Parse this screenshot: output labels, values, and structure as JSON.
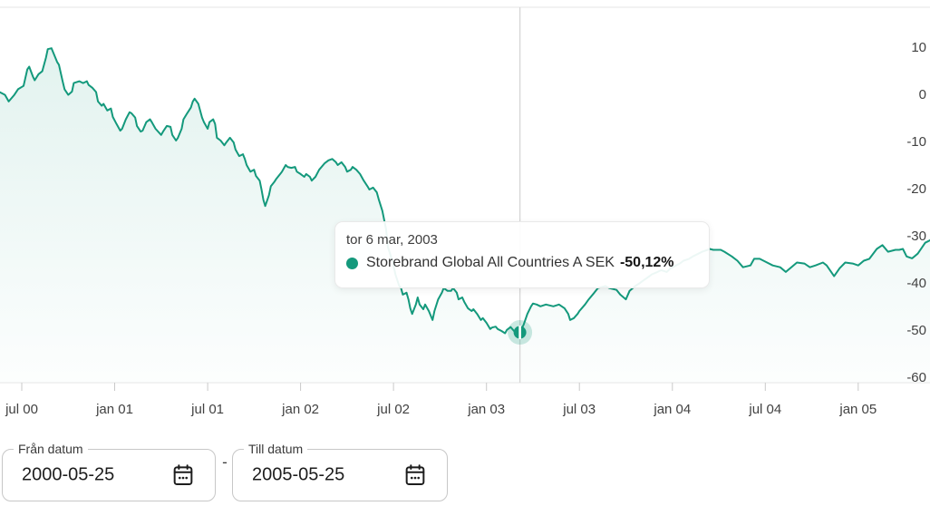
{
  "colors": {
    "accent": "#14997c",
    "accent_halo": "rgba(20,153,124,0.22)",
    "area_top": "rgba(20,153,124,0.12)",
    "area_bottom": "rgba(20,153,124,0.01)",
    "axis_line": "#e6e6e6",
    "tick": "#c9c9c9",
    "crosshair": "#d6d6d6",
    "axis_text": "#424242",
    "text_dark": "#1d1d1d",
    "field_border": "#c7c7c7"
  },
  "tooltip": {
    "date": "tor 6 mar, 2003",
    "series_name": "Storebrand Global All Countries A SEK",
    "value": "-50,12%"
  },
  "controls": {
    "from": {
      "label": "Från datum",
      "value": "2000-05-25"
    },
    "separator": "-",
    "to": {
      "label": "Till datum",
      "value": "2005-05-25"
    }
  },
  "chart_data": {
    "type": "area",
    "title": "",
    "xlabel": "",
    "ylabel": "",
    "unit": "%",
    "grid": "top and bottom border lines only, no inner gridlines",
    "legend_position": "none (single series, named in tooltip)",
    "xlim": [
      2000.383,
      2005.386
    ],
    "ylim": [
      -60.8,
      18.9
    ],
    "x_ticks": [
      {
        "label": "jul 00",
        "year": 2000.5
      },
      {
        "label": "jan 01",
        "year": 2001.0
      },
      {
        "label": "jul 01",
        "year": 2001.5
      },
      {
        "label": "jan 02",
        "year": 2002.0
      },
      {
        "label": "jul 02",
        "year": 2002.5
      },
      {
        "label": "jan 03",
        "year": 2003.0
      },
      {
        "label": "jul 03",
        "year": 2003.5
      },
      {
        "label": "jan 04",
        "year": 2004.0
      },
      {
        "label": "jul 04",
        "year": 2004.5
      },
      {
        "label": "jan 05",
        "year": 2005.0
      }
    ],
    "y_ticks": [
      {
        "label": "10",
        "value": 10
      },
      {
        "label": "0",
        "value": 0
      },
      {
        "label": "-10",
        "value": -10
      },
      {
        "label": "-20",
        "value": -20
      },
      {
        "label": "-30",
        "value": -30
      },
      {
        "label": "-40",
        "value": -40
      },
      {
        "label": "-50",
        "value": -50
      },
      {
        "label": "-60",
        "value": -60
      }
    ],
    "highlight": {
      "date_label": "tor 6 mar, 2003",
      "year": 2003.18,
      "value": -50.12
    },
    "series": [
      {
        "name": "Storebrand Global All Countries A SEK",
        "points": [
          [
            2000.38,
            0.9
          ],
          [
            2000.41,
            0.3
          ],
          [
            2000.43,
            -1.1
          ],
          [
            2000.46,
            0.3
          ],
          [
            2000.48,
            1.5
          ],
          [
            2000.51,
            2.2
          ],
          [
            2000.53,
            5.7
          ],
          [
            2000.54,
            6.3
          ],
          [
            2000.56,
            4.2
          ],
          [
            2000.57,
            3.4
          ],
          [
            2000.59,
            4.7
          ],
          [
            2000.61,
            5.3
          ],
          [
            2000.63,
            8.2
          ],
          [
            2000.64,
            10.0
          ],
          [
            2000.66,
            10.2
          ],
          [
            2000.69,
            7.3
          ],
          [
            2000.7,
            6.7
          ],
          [
            2000.72,
            3.2
          ],
          [
            2000.73,
            1.5
          ],
          [
            2000.75,
            0.3
          ],
          [
            2000.77,
            1.0
          ],
          [
            2000.78,
            2.8
          ],
          [
            2000.81,
            3.2
          ],
          [
            2000.83,
            2.8
          ],
          [
            2000.85,
            3.2
          ],
          [
            2000.86,
            2.4
          ],
          [
            2000.88,
            1.8
          ],
          [
            2000.9,
            0.9
          ],
          [
            2000.91,
            -1.1
          ],
          [
            2000.93,
            -2.0
          ],
          [
            2000.94,
            -1.6
          ],
          [
            2000.96,
            -3.0
          ],
          [
            2000.98,
            -2.6
          ],
          [
            2000.99,
            -4.4
          ],
          [
            2001.01,
            -5.9
          ],
          [
            2001.03,
            -7.3
          ],
          [
            2001.04,
            -6.9
          ],
          [
            2001.06,
            -4.9
          ],
          [
            2001.08,
            -3.4
          ],
          [
            2001.09,
            -3.6
          ],
          [
            2001.11,
            -4.5
          ],
          [
            2001.12,
            -6.3
          ],
          [
            2001.14,
            -7.5
          ],
          [
            2001.15,
            -7.3
          ],
          [
            2001.17,
            -5.5
          ],
          [
            2001.19,
            -4.9
          ],
          [
            2001.2,
            -5.5
          ],
          [
            2001.22,
            -6.9
          ],
          [
            2001.25,
            -8.2
          ],
          [
            2001.26,
            -7.5
          ],
          [
            2001.28,
            -6.3
          ],
          [
            2001.3,
            -6.5
          ],
          [
            2001.31,
            -8.2
          ],
          [
            2001.33,
            -9.4
          ],
          [
            2001.34,
            -8.8
          ],
          [
            2001.36,
            -6.9
          ],
          [
            2001.37,
            -4.9
          ],
          [
            2001.39,
            -3.6
          ],
          [
            2001.41,
            -2.4
          ],
          [
            2001.42,
            -1.1
          ],
          [
            2001.43,
            -0.5
          ],
          [
            2001.45,
            -1.6
          ],
          [
            2001.47,
            -4.5
          ],
          [
            2001.48,
            -5.5
          ],
          [
            2001.5,
            -6.9
          ],
          [
            2001.51,
            -5.5
          ],
          [
            2001.53,
            -4.9
          ],
          [
            2001.54,
            -5.9
          ],
          [
            2001.55,
            -8.8
          ],
          [
            2001.57,
            -9.4
          ],
          [
            2001.59,
            -10.4
          ],
          [
            2001.6,
            -9.8
          ],
          [
            2001.62,
            -8.8
          ],
          [
            2001.64,
            -9.8
          ],
          [
            2001.65,
            -11.3
          ],
          [
            2001.67,
            -12.7
          ],
          [
            2001.69,
            -12.3
          ],
          [
            2001.7,
            -13.3
          ],
          [
            2001.71,
            -14.6
          ],
          [
            2001.73,
            -16.0
          ],
          [
            2001.75,
            -15.6
          ],
          [
            2001.76,
            -16.9
          ],
          [
            2001.78,
            -17.9
          ],
          [
            2001.79,
            -19.8
          ],
          [
            2001.8,
            -22.0
          ],
          [
            2001.81,
            -23.3
          ],
          [
            2001.83,
            -21.0
          ],
          [
            2001.84,
            -19.1
          ],
          [
            2001.86,
            -18.1
          ],
          [
            2001.87,
            -17.5
          ],
          [
            2001.89,
            -16.5
          ],
          [
            2001.9,
            -16.0
          ],
          [
            2001.92,
            -14.6
          ],
          [
            2001.93,
            -15.0
          ],
          [
            2001.95,
            -15.2
          ],
          [
            2001.97,
            -15.0
          ],
          [
            2001.98,
            -16.0
          ],
          [
            2002.0,
            -16.5
          ],
          [
            2002.02,
            -17.1
          ],
          [
            2002.03,
            -16.5
          ],
          [
            2002.05,
            -17.1
          ],
          [
            2002.06,
            -17.9
          ],
          [
            2002.08,
            -17.1
          ],
          [
            2002.1,
            -15.6
          ],
          [
            2002.13,
            -14.2
          ],
          [
            2002.15,
            -13.6
          ],
          [
            2002.17,
            -13.3
          ],
          [
            2002.19,
            -14.0
          ],
          [
            2002.2,
            -14.6
          ],
          [
            2002.22,
            -14.0
          ],
          [
            2002.24,
            -15.0
          ],
          [
            2002.25,
            -16.0
          ],
          [
            2002.27,
            -15.6
          ],
          [
            2002.28,
            -15.0
          ],
          [
            2002.3,
            -15.6
          ],
          [
            2002.32,
            -16.5
          ],
          [
            2002.34,
            -17.9
          ],
          [
            2002.36,
            -19.1
          ],
          [
            2002.37,
            -19.8
          ],
          [
            2002.39,
            -19.4
          ],
          [
            2002.41,
            -20.4
          ],
          [
            2002.42,
            -21.8
          ],
          [
            2002.44,
            -24.3
          ],
          [
            2002.46,
            -28.2
          ],
          [
            2002.47,
            -32.0
          ],
          [
            2002.49,
            -34.5
          ],
          [
            2002.5,
            -35.9
          ],
          [
            2002.51,
            -37.8
          ],
          [
            2002.53,
            -40.2
          ],
          [
            2002.54,
            -40.7
          ],
          [
            2002.55,
            -42.1
          ],
          [
            2002.57,
            -41.7
          ],
          [
            2002.58,
            -43.1
          ],
          [
            2002.59,
            -45.0
          ],
          [
            2002.6,
            -46.2
          ],
          [
            2002.62,
            -44.2
          ],
          [
            2002.63,
            -42.7
          ],
          [
            2002.64,
            -44.2
          ],
          [
            2002.66,
            -45.2
          ],
          [
            2002.67,
            -44.2
          ],
          [
            2002.69,
            -45.6
          ],
          [
            2002.71,
            -47.5
          ],
          [
            2002.72,
            -45.6
          ],
          [
            2002.74,
            -43.1
          ],
          [
            2002.76,
            -41.7
          ],
          [
            2002.77,
            -40.7
          ],
          [
            2002.79,
            -41.3
          ],
          [
            2002.81,
            -41.3
          ],
          [
            2002.82,
            -40.7
          ],
          [
            2002.84,
            -41.7
          ],
          [
            2002.85,
            -43.1
          ],
          [
            2002.87,
            -42.7
          ],
          [
            2002.88,
            -43.6
          ],
          [
            2002.9,
            -45.0
          ],
          [
            2002.92,
            -45.6
          ],
          [
            2002.93,
            -45.2
          ],
          [
            2002.95,
            -46.2
          ],
          [
            2002.97,
            -47.5
          ],
          [
            2002.98,
            -47.1
          ],
          [
            2003.0,
            -48.1
          ],
          [
            2003.02,
            -49.4
          ],
          [
            2003.03,
            -49.1
          ],
          [
            2003.05,
            -48.9
          ],
          [
            2003.06,
            -49.4
          ],
          [
            2003.08,
            -49.8
          ],
          [
            2003.1,
            -50.3
          ],
          [
            2003.11,
            -49.6
          ],
          [
            2003.13,
            -49.0
          ],
          [
            2003.15,
            -49.9
          ],
          [
            2003.16,
            -50.0
          ],
          [
            2003.18,
            -50.12
          ],
          [
            2003.2,
            -48.5
          ],
          [
            2003.22,
            -46.2
          ],
          [
            2003.24,
            -44.6
          ],
          [
            2003.25,
            -44.0
          ],
          [
            2003.27,
            -44.2
          ],
          [
            2003.29,
            -44.6
          ],
          [
            2003.32,
            -44.2
          ],
          [
            2003.36,
            -44.6
          ],
          [
            2003.39,
            -44.2
          ],
          [
            2003.42,
            -45.0
          ],
          [
            2003.44,
            -46.2
          ],
          [
            2003.45,
            -47.5
          ],
          [
            2003.47,
            -47.1
          ],
          [
            2003.49,
            -46.2
          ],
          [
            2003.5,
            -45.6
          ],
          [
            2003.53,
            -44.2
          ],
          [
            2003.55,
            -43.1
          ],
          [
            2003.58,
            -41.7
          ],
          [
            2003.6,
            -40.7
          ],
          [
            2003.64,
            -40.3
          ],
          [
            2003.66,
            -40.7
          ],
          [
            2003.7,
            -41.1
          ],
          [
            2003.72,
            -42.1
          ],
          [
            2003.75,
            -43.1
          ],
          [
            2003.77,
            -41.3
          ],
          [
            2003.8,
            -40.3
          ],
          [
            2003.82,
            -39.8
          ],
          [
            2003.84,
            -39.2
          ],
          [
            2003.87,
            -38.4
          ],
          [
            2003.89,
            -37.8
          ],
          [
            2003.92,
            -37.3
          ],
          [
            2003.94,
            -36.9
          ],
          [
            2003.97,
            -37.3
          ],
          [
            2003.99,
            -36.5
          ],
          [
            2004.02,
            -35.9
          ],
          [
            2004.04,
            -35.5
          ],
          [
            2004.06,
            -34.9
          ],
          [
            2004.09,
            -34.5
          ],
          [
            2004.11,
            -34.0
          ],
          [
            2004.14,
            -33.4
          ],
          [
            2004.16,
            -33.0
          ],
          [
            2004.19,
            -32.6
          ],
          [
            2004.2,
            -32.4
          ],
          [
            2004.22,
            -32.6
          ],
          [
            2004.26,
            -32.6
          ],
          [
            2004.28,
            -33.0
          ],
          [
            2004.32,
            -34.0
          ],
          [
            2004.35,
            -34.9
          ],
          [
            2004.38,
            -36.3
          ],
          [
            2004.42,
            -35.9
          ],
          [
            2004.44,
            -34.5
          ],
          [
            2004.47,
            -34.5
          ],
          [
            2004.49,
            -34.9
          ],
          [
            2004.54,
            -35.9
          ],
          [
            2004.58,
            -36.3
          ],
          [
            2004.61,
            -37.3
          ],
          [
            2004.64,
            -36.3
          ],
          [
            2004.67,
            -35.3
          ],
          [
            2004.71,
            -35.5
          ],
          [
            2004.74,
            -36.3
          ],
          [
            2004.77,
            -35.9
          ],
          [
            2004.81,
            -35.3
          ],
          [
            2004.83,
            -35.9
          ],
          [
            2004.87,
            -38.2
          ],
          [
            2004.9,
            -36.5
          ],
          [
            2004.93,
            -35.3
          ],
          [
            2004.97,
            -35.5
          ],
          [
            2005.0,
            -35.9
          ],
          [
            2005.03,
            -34.9
          ],
          [
            2005.06,
            -34.5
          ],
          [
            2005.1,
            -32.4
          ],
          [
            2005.13,
            -31.6
          ],
          [
            2005.16,
            -33.0
          ],
          [
            2005.2,
            -32.6
          ],
          [
            2005.22,
            -32.6
          ],
          [
            2005.24,
            -32.4
          ],
          [
            2005.26,
            -34.0
          ],
          [
            2005.29,
            -34.4
          ],
          [
            2005.32,
            -33.4
          ],
          [
            2005.36,
            -31.1
          ],
          [
            2005.39,
            -30.5
          ]
        ]
      }
    ]
  }
}
